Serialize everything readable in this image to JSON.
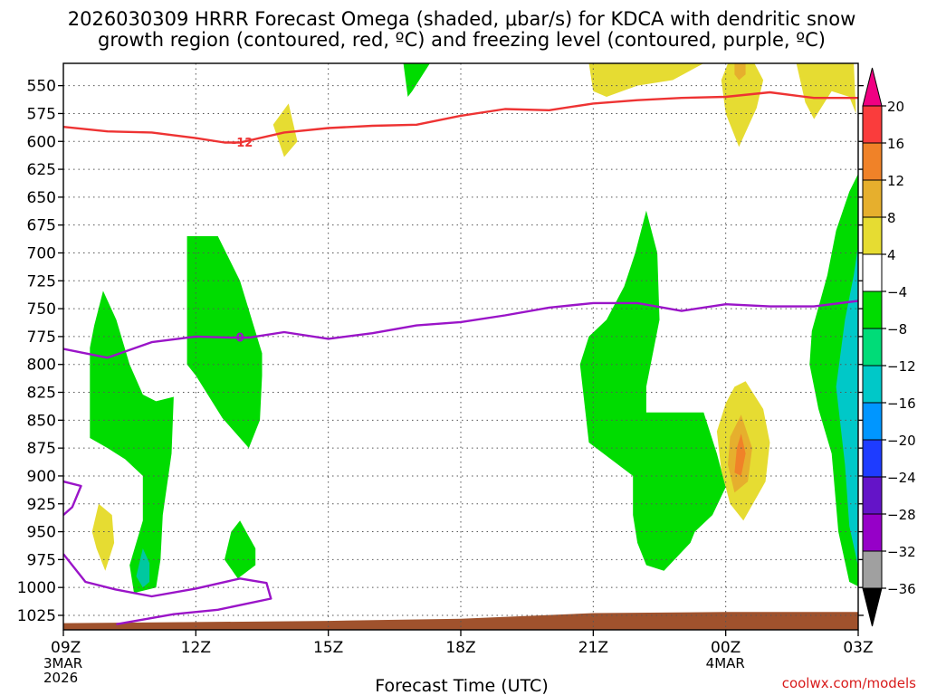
{
  "chart_data": {
    "type": "heatmap",
    "title_lines": [
      "2026030309 HRRR Forecast Omega (shaded, μbar/s) for KDCA with dendritic snow",
      "growth region (contoured, red, ºC) and freezing level (contoured, purple, ºC)"
    ],
    "xlabel": "Forecast Time (UTC)",
    "ylabel": "",
    "x_units": "hours since 09Z 3MAR",
    "xlim": [
      0,
      18
    ],
    "ylim": [
      1038,
      530
    ],
    "x_ticks": [
      {
        "x": 0,
        "label": "09Z",
        "sub": [
          "3MAR",
          "2026"
        ]
      },
      {
        "x": 3,
        "label": "12Z",
        "sub": []
      },
      {
        "x": 6,
        "label": "15Z",
        "sub": []
      },
      {
        "x": 9,
        "label": "18Z",
        "sub": []
      },
      {
        "x": 12,
        "label": "21Z",
        "sub": []
      },
      {
        "x": 15,
        "label": "00Z",
        "sub": [
          "4MAR"
        ]
      },
      {
        "x": 18,
        "label": "03Z",
        "sub": []
      }
    ],
    "y_ticks": [
      550,
      575,
      600,
      625,
      650,
      675,
      700,
      725,
      750,
      775,
      800,
      825,
      850,
      875,
      900,
      925,
      950,
      975,
      1000,
      1025
    ],
    "colorbar": {
      "levels": [
        -36,
        -32,
        -28,
        -24,
        -20,
        -16,
        -12,
        -8,
        -4,
        4,
        8,
        12,
        16,
        20
      ],
      "colors": [
        "#000000",
        "#a0a0a0",
        "#9600c8",
        "#6414c8",
        "#1e3cff",
        "#0096ff",
        "#00c8c8",
        "#00dc78",
        "#00dc00",
        "#ffffff",
        "#e6dc32",
        "#e6af2d",
        "#f08228",
        "#fa3c3c",
        "#f00082"
      ]
    },
    "fill_colors": {
      "g": "#00dc00",
      "t": "#00c8a0",
      "c": "#00c8c8",
      "y": "#e6dc32",
      "o": "#e6af2d",
      "r": "#f08228",
      "ground": "#a0522d"
    },
    "shaded_regions": [
      {
        "fill": "g",
        "points": [
          [
            0.9,
            734
          ],
          [
            1.2,
            760
          ],
          [
            1.5,
            800
          ],
          [
            1.8,
            827
          ],
          [
            2.1,
            833
          ],
          [
            2.5,
            829
          ],
          [
            2.45,
            880
          ],
          [
            2.25,
            935
          ],
          [
            2.2,
            975
          ],
          [
            2.1,
            1000
          ],
          [
            1.6,
            1005
          ],
          [
            1.5,
            980
          ],
          [
            1.8,
            940
          ],
          [
            1.8,
            900
          ],
          [
            1.4,
            885
          ],
          [
            1.0,
            875
          ],
          [
            0.6,
            866
          ],
          [
            0.6,
            785
          ],
          [
            0.7,
            765
          ]
        ]
      },
      {
        "fill": "t",
        "points": [
          [
            1.8,
            965
          ],
          [
            1.95,
            978
          ],
          [
            1.95,
            995
          ],
          [
            1.8,
            1000
          ],
          [
            1.65,
            990
          ]
        ]
      },
      {
        "fill": "g",
        "points": [
          [
            2.8,
            685
          ],
          [
            3.5,
            685
          ],
          [
            4.0,
            725
          ],
          [
            4.5,
            790
          ],
          [
            4.5,
            810
          ],
          [
            4.45,
            850
          ],
          [
            4.2,
            875
          ],
          [
            3.6,
            848
          ],
          [
            3.0,
            810
          ],
          [
            2.8,
            800
          ],
          [
            2.8,
            710
          ]
        ]
      },
      {
        "fill": "g",
        "points": [
          [
            4.0,
            940
          ],
          [
            4.35,
            965
          ],
          [
            4.35,
            980
          ],
          [
            3.95,
            992
          ],
          [
            3.65,
            975
          ],
          [
            3.8,
            950
          ]
        ]
      },
      {
        "fill": "y",
        "points": [
          [
            0.8,
            925
          ],
          [
            1.1,
            935
          ],
          [
            1.15,
            960
          ],
          [
            0.95,
            985
          ],
          [
            0.75,
            965
          ],
          [
            0.65,
            950
          ]
        ]
      },
      {
        "fill": "y",
        "points": [
          [
            5.1,
            566
          ],
          [
            5.3,
            600
          ],
          [
            5.0,
            614
          ],
          [
            4.75,
            585
          ]
        ]
      },
      {
        "fill": "g",
        "points": [
          [
            7.7,
            530
          ],
          [
            8.3,
            530
          ],
          [
            7.9,
            555
          ],
          [
            7.8,
            560
          ]
        ]
      },
      {
        "fill": "y",
        "points": [
          [
            11.9,
            530
          ],
          [
            14.5,
            530
          ],
          [
            13.8,
            545
          ],
          [
            13.0,
            550
          ],
          [
            12.3,
            560
          ],
          [
            12.0,
            555
          ]
        ]
      },
      {
        "fill": "g",
        "points": [
          [
            13.2,
            662
          ],
          [
            13.45,
            700
          ],
          [
            13.5,
            760
          ],
          [
            13.2,
            820
          ],
          [
            13.2,
            843
          ],
          [
            14.5,
            843
          ],
          [
            14.8,
            880
          ],
          [
            15.0,
            910
          ],
          [
            14.7,
            935
          ],
          [
            14.3,
            950
          ],
          [
            14.2,
            960
          ],
          [
            13.6,
            985
          ],
          [
            13.2,
            980
          ],
          [
            13.0,
            960
          ],
          [
            12.9,
            935
          ],
          [
            12.9,
            900
          ],
          [
            11.9,
            870
          ],
          [
            11.7,
            800
          ],
          [
            11.9,
            775
          ],
          [
            12.3,
            760
          ],
          [
            12.7,
            730
          ],
          [
            12.95,
            700
          ]
        ]
      },
      {
        "fill": "y",
        "points": [
          [
            15.45,
            815
          ],
          [
            15.85,
            840
          ],
          [
            16.0,
            870
          ],
          [
            15.9,
            905
          ],
          [
            15.4,
            940
          ],
          [
            15.1,
            925
          ],
          [
            14.9,
            895
          ],
          [
            14.8,
            860
          ],
          [
            15.0,
            835
          ],
          [
            15.2,
            820
          ]
        ]
      },
      {
        "fill": "o",
        "points": [
          [
            15.35,
            845
          ],
          [
            15.6,
            875
          ],
          [
            15.5,
            905
          ],
          [
            15.2,
            915
          ],
          [
            15.05,
            890
          ],
          [
            15.1,
            865
          ]
        ]
      },
      {
        "fill": "r",
        "points": [
          [
            15.35,
            862
          ],
          [
            15.45,
            880
          ],
          [
            15.35,
            900
          ],
          [
            15.2,
            897
          ],
          [
            15.25,
            875
          ]
        ]
      },
      {
        "fill": "y",
        "points": [
          [
            15.05,
            530
          ],
          [
            15.65,
            530
          ],
          [
            15.85,
            545
          ],
          [
            15.7,
            570
          ],
          [
            15.3,
            605
          ],
          [
            15.0,
            575
          ],
          [
            14.9,
            545
          ]
        ]
      },
      {
        "fill": "o",
        "points": [
          [
            15.2,
            530
          ],
          [
            15.45,
            530
          ],
          [
            15.45,
            540
          ],
          [
            15.3,
            545
          ],
          [
            15.2,
            540
          ]
        ]
      },
      {
        "fill": "y",
        "points": [
          [
            16.6,
            530
          ],
          [
            17.9,
            530
          ],
          [
            17.95,
            575
          ],
          [
            17.8,
            560
          ],
          [
            17.4,
            555
          ],
          [
            17.0,
            580
          ],
          [
            16.8,
            565
          ]
        ]
      },
      {
        "fill": "g",
        "points": [
          [
            18.05,
            625
          ],
          [
            18.05,
            1000
          ],
          [
            17.8,
            995
          ],
          [
            17.55,
            950
          ],
          [
            17.4,
            880
          ],
          [
            17.1,
            840
          ],
          [
            16.9,
            800
          ],
          [
            16.95,
            770
          ],
          [
            17.3,
            720
          ],
          [
            17.5,
            680
          ],
          [
            17.8,
            645
          ]
        ]
      },
      {
        "fill": "c",
        "points": [
          [
            18.05,
            680
          ],
          [
            18.05,
            990
          ],
          [
            17.8,
            945
          ],
          [
            17.7,
            890
          ],
          [
            17.5,
            820
          ],
          [
            17.7,
            760
          ],
          [
            17.9,
            720
          ]
        ]
      }
    ],
    "ground_profile": [
      [
        0,
        1032
      ],
      [
        3,
        1031
      ],
      [
        6,
        1030
      ],
      [
        9,
        1028
      ],
      [
        12,
        1023
      ],
      [
        15,
        1022
      ],
      [
        18,
        1022
      ]
    ],
    "contours": [
      {
        "name": "dendritic snow growth -12C",
        "color": "#ee3333",
        "label": "-12",
        "label_at": [
          4.05,
          601
        ],
        "points": [
          [
            0,
            587
          ],
          [
            1,
            591
          ],
          [
            2,
            592
          ],
          [
            3,
            597
          ],
          [
            3.65,
            601
          ],
          [
            4,
            601
          ],
          [
            5,
            592
          ],
          [
            6,
            588
          ],
          [
            7,
            586
          ],
          [
            8,
            585
          ],
          [
            9,
            577
          ],
          [
            10,
            571
          ],
          [
            11,
            572
          ],
          [
            12,
            566
          ],
          [
            13,
            563
          ],
          [
            14,
            561
          ],
          [
            15,
            560
          ],
          [
            16,
            556
          ],
          [
            17,
            561
          ],
          [
            18,
            561
          ]
        ]
      },
      {
        "name": "freezing level 0C",
        "color": "#9a14c8",
        "label": "0",
        "label_at": [
          4,
          776
        ],
        "points": [
          [
            0,
            786
          ],
          [
            1,
            794
          ],
          [
            2,
            780
          ],
          [
            3,
            775
          ],
          [
            3.8,
            776
          ],
          [
            4.2,
            776
          ],
          [
            5,
            771
          ],
          [
            6,
            777
          ],
          [
            7,
            772
          ],
          [
            8,
            765
          ],
          [
            9,
            762
          ],
          [
            10,
            756
          ],
          [
            11,
            749
          ],
          [
            12,
            745
          ],
          [
            13,
            745
          ],
          [
            14,
            752
          ],
          [
            15,
            746
          ],
          [
            16,
            748
          ],
          [
            17,
            748
          ],
          [
            18,
            743
          ]
        ]
      },
      {
        "name": "freezing level 0C (first pass)",
        "color": "#9a14c8",
        "label": "",
        "label_at": null,
        "points": [
          [
            0,
            905
          ],
          [
            0.4,
            909
          ],
          [
            0.2,
            928
          ],
          [
            0,
            935
          ]
        ]
      },
      {
        "name": "freezing level 0C (loop)",
        "color": "#9a14c8",
        "label": "",
        "label_at": null,
        "points": [
          [
            0,
            970
          ],
          [
            0.5,
            995
          ],
          [
            1.2,
            1002
          ],
          [
            2,
            1008
          ],
          [
            3,
            1001
          ],
          [
            4,
            992
          ],
          [
            4.6,
            996
          ],
          [
            4.7,
            1010
          ],
          [
            3.5,
            1020
          ],
          [
            2.5,
            1024
          ],
          [
            1.2,
            1033
          ]
        ]
      }
    ],
    "credit": "coolwx.com/models"
  }
}
